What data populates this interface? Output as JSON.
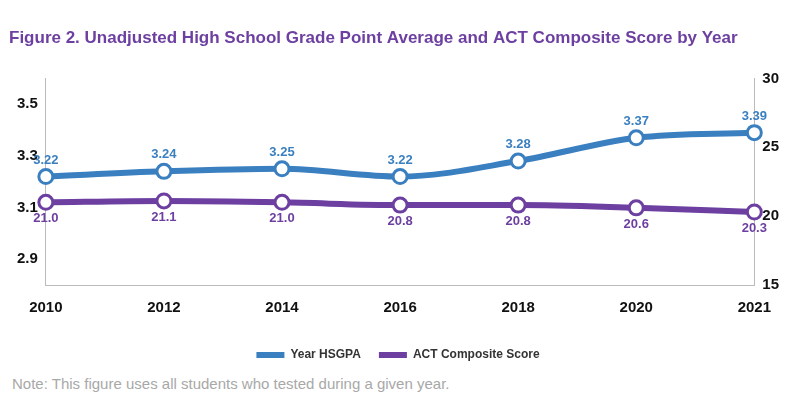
{
  "chart_data": {
    "type": "line",
    "title": "Figure 2. Unadjusted High School Grade Point Average and ACT Composite Score by Year",
    "note": "Note: This figure uses all students who tested during a given year.",
    "categories": [
      "2010",
      "2012",
      "2014",
      "2016",
      "2018",
      "2020",
      "2021"
    ],
    "series": [
      {
        "name": "Year HSGPA",
        "color": "#3a7fbf",
        "marker": "circle",
        "axis": "y",
        "values": [
          3.22,
          3.24,
          3.25,
          3.22,
          3.28,
          3.37,
          3.39
        ]
      },
      {
        "name": "ACT Composite Score",
        "color": "#6c3fa0",
        "marker": "circle",
        "axis": "y2",
        "values": [
          21.0,
          21.1,
          21.0,
          20.8,
          20.8,
          20.6,
          20.3
        ],
        "value_labels": [
          "21.0",
          "21.1",
          "21.0",
          "20.8",
          "20.8",
          "20.6",
          "20.3"
        ]
      }
    ],
    "ylim": [
      2.8,
      3.6
    ],
    "yticks": [
      2.9,
      3.1,
      3.3,
      3.5
    ],
    "y2lim": [
      15,
      30
    ],
    "y2ticks": [
      15,
      20,
      25,
      30
    ],
    "grid": false,
    "legend": "bottom",
    "data_labels": true
  }
}
